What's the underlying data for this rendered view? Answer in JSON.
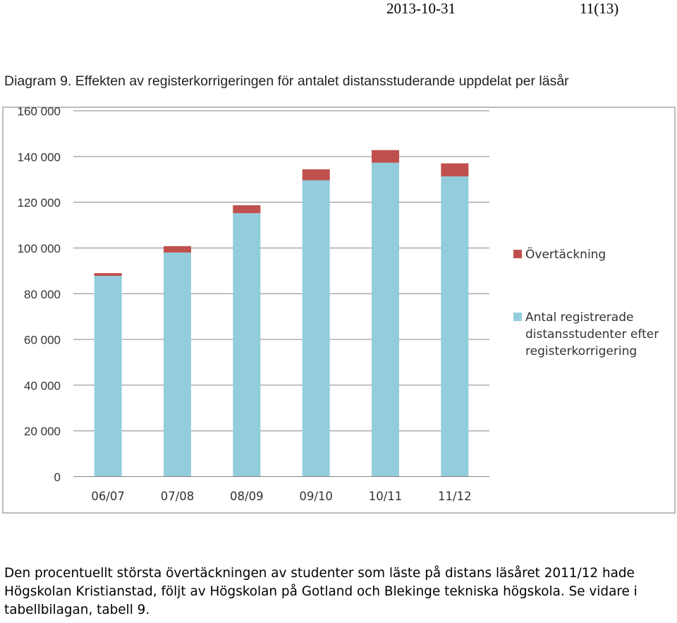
{
  "header": {
    "date": "2013-10-31",
    "page": "11(13)"
  },
  "title": "Diagram 9. Effekten av registerkorrigeringen för antalet distansstuderande uppdelat per läsår",
  "chart_data": {
    "type": "bar",
    "stacked": true,
    "categories": [
      "06/07",
      "07/08",
      "08/09",
      "09/10",
      "10/11",
      "11/12"
    ],
    "series": [
      {
        "name": "Antal registrerade distansstudenter efter registerkorrigering",
        "legend_lines": [
          "Antal registrerade",
          "distansstudenter efter",
          "registerkorrigering"
        ],
        "color": "#93CDDD",
        "values": [
          87800,
          98000,
          115200,
          129600,
          137300,
          131300
        ]
      },
      {
        "name": "Övertäckning",
        "legend_lines": [
          "Övertäckning"
        ],
        "color": "#C0504D",
        "values": [
          1200,
          2800,
          3500,
          4800,
          5500,
          5700
        ]
      }
    ],
    "ylim": [
      0,
      160000
    ],
    "yticks": [
      0,
      20000,
      40000,
      60000,
      80000,
      100000,
      120000,
      140000,
      160000
    ],
    "ytick_labels": [
      "0",
      "20 000",
      "40 000",
      "60 000",
      "80 000",
      "100 000",
      "120 000",
      "140 000",
      "160 000"
    ],
    "grid": true,
    "legend_position": "right",
    "xlabel": "",
    "ylabel": ""
  },
  "paragraph": {
    "lines": [
      "Den procentuellt största övertäckningen av studenter som läste på distans läsåret 2011/12 hade",
      "Högskolan Kristianstad, följt av Högskolan på Gotland och Blekinge tekniska högskola. Se vidare i",
      "tabellbilagan, tabell 9."
    ]
  }
}
